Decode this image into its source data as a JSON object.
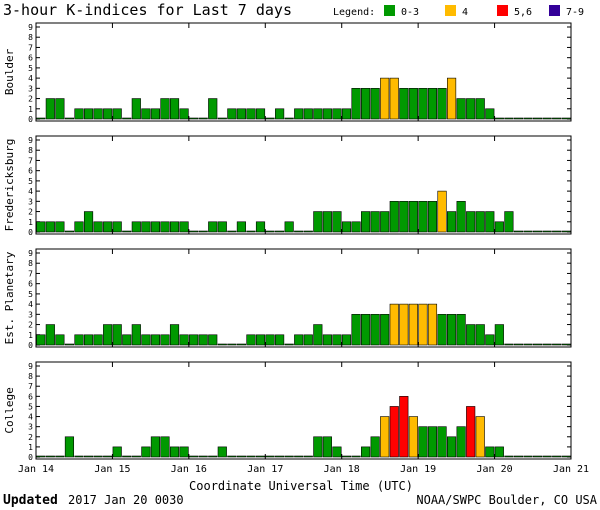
{
  "chart_data": {
    "type": "bar",
    "title": "3-hour K-indices for Last 7 days",
    "xlabel": "Coordinate Universal Time (UTC)",
    "ylim": [
      0,
      9
    ],
    "yticks": [
      "0",
      "1",
      "2",
      "3",
      "4",
      "5",
      "6",
      "7",
      "8",
      "9"
    ],
    "xticks": [
      "Jan 14",
      "Jan 15",
      "Jan 16",
      "Jan 17",
      "Jan 18",
      "Jan 19",
      "Jan 20",
      "Jan 21"
    ],
    "legend": {
      "label": "Legend:",
      "entries": [
        {
          "label": "0-3",
          "color": "#009900"
        },
        {
          "label": "4",
          "color": "#ffbb00"
        },
        {
          "label": "5,6",
          "color": "#ff0000"
        },
        {
          "label": "7-9",
          "color": "#330099"
        }
      ]
    },
    "series": [
      {
        "name": "Boulder",
        "values": [
          0,
          2,
          2,
          0,
          1,
          1,
          1,
          1,
          1,
          0,
          2,
          1,
          1,
          2,
          2,
          1,
          0,
          0,
          2,
          0,
          1,
          1,
          1,
          1,
          0,
          1,
          0,
          1,
          1,
          1,
          1,
          1,
          1,
          3,
          3,
          3,
          4,
          4,
          3,
          3,
          3,
          3,
          3,
          4,
          2,
          2,
          2,
          1,
          0,
          0,
          0,
          0,
          0,
          0,
          0,
          0
        ]
      },
      {
        "name": "Fredericksburg",
        "values": [
          1,
          1,
          1,
          0,
          1,
          2,
          1,
          1,
          1,
          0,
          1,
          1,
          1,
          1,
          1,
          1,
          0,
          0,
          1,
          1,
          0,
          1,
          0,
          1,
          0,
          0,
          1,
          0,
          0,
          2,
          2,
          2,
          1,
          1,
          2,
          2,
          2,
          3,
          3,
          3,
          3,
          3,
          4,
          2,
          3,
          2,
          2,
          2,
          1,
          2,
          0,
          0,
          0,
          0,
          0,
          0
        ]
      },
      {
        "name": "Est. Planetary",
        "values": [
          1,
          2,
          1,
          0,
          1,
          1,
          1,
          2,
          2,
          1,
          2,
          1,
          1,
          1,
          2,
          1,
          1,
          1,
          1,
          0,
          0,
          0,
          1,
          1,
          1,
          1,
          0,
          1,
          1,
          2,
          1,
          1,
          1,
          3,
          3,
          3,
          3,
          4,
          4,
          4,
          4,
          4,
          3,
          3,
          3,
          2,
          2,
          1,
          2,
          0,
          0,
          0,
          0,
          0,
          0,
          0
        ]
      },
      {
        "name": "College",
        "values": [
          0,
          0,
          0,
          2,
          0,
          0,
          0,
          0,
          1,
          0,
          0,
          1,
          2,
          2,
          1,
          1,
          0,
          0,
          0,
          1,
          0,
          0,
          0,
          0,
          0,
          0,
          0,
          0,
          0,
          2,
          2,
          1,
          0,
          0,
          1,
          2,
          4,
          5,
          6,
          4,
          3,
          3,
          3,
          2,
          3,
          5,
          4,
          1,
          1,
          0,
          0,
          0,
          0,
          0,
          0,
          0
        ]
      }
    ]
  },
  "footer": {
    "updated_label": "Updated",
    "updated_value": "2017 Jan 20 0030",
    "credit": "NOAA/SWPC Boulder, CO USA"
  }
}
